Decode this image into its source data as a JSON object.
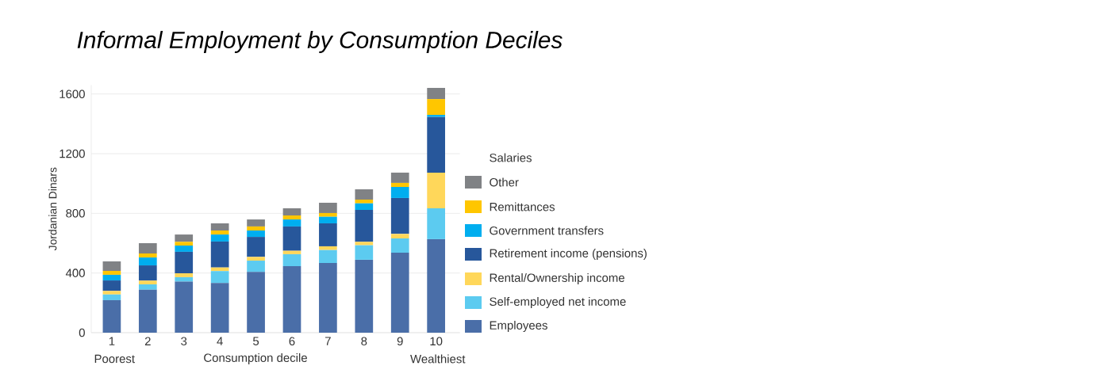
{
  "chart_data": {
    "type": "bar",
    "stacked": true,
    "title": "Informal Employment by Consumption Deciles",
    "xlabel": "Consumption decile",
    "ylabel": "Jordanian Dinars",
    "legend_title": "Salaries",
    "categories": [
      "1",
      "2",
      "3",
      "4",
      "5",
      "6",
      "7",
      "8",
      "9",
      "10"
    ],
    "series": [
      {
        "name": "Employees",
        "color": "#4a6ea8",
        "values": [
          218,
          288,
          342,
          333,
          407,
          446,
          467,
          489,
          536,
          627
        ]
      },
      {
        "name": "Self-employed net income",
        "color": "#5ccbf0",
        "values": [
          38,
          36,
          30,
          80,
          76,
          80,
          87,
          97,
          96,
          207
        ]
      },
      {
        "name": "Rental/Ownership income",
        "color": "#ffd75a",
        "values": [
          24,
          25,
          26,
          24,
          25,
          23,
          25,
          23,
          30,
          239
        ]
      },
      {
        "name": "Retirement income (pensions)",
        "color": "#27579b",
        "values": [
          70,
          102,
          144,
          174,
          134,
          163,
          154,
          214,
          241,
          373
        ]
      },
      {
        "name": "Government transfers",
        "color": "#00aeef",
        "values": [
          38,
          53,
          42,
          47,
          43,
          47,
          44,
          44,
          74,
          14
        ]
      },
      {
        "name": "Remittances",
        "color": "#ffc600",
        "values": [
          26,
          27,
          25,
          27,
          27,
          27,
          25,
          25,
          27,
          106
        ]
      },
      {
        "name": "Other",
        "color": "#808285",
        "values": [
          64,
          69,
          49,
          48,
          47,
          48,
          69,
          69,
          69,
          75
        ]
      }
    ],
    "ylim": [
      0,
      1660
    ],
    "yticks": [
      0,
      400,
      800,
      1200,
      1600
    ],
    "grid": "y",
    "legend": "right",
    "annotations": [
      "Poorest",
      "Wealthiest"
    ]
  }
}
